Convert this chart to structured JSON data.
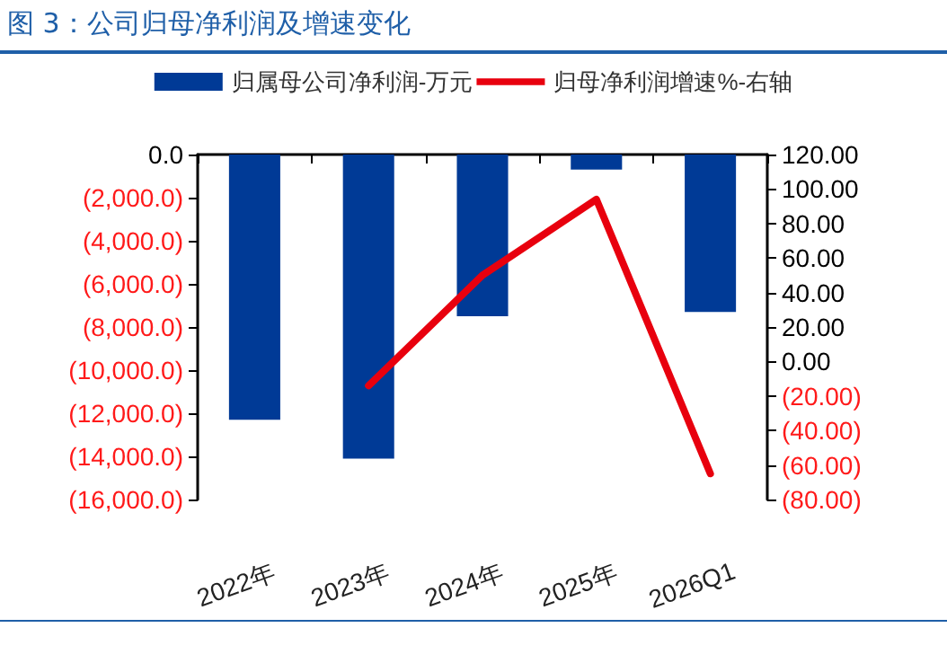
{
  "chart_data": {
    "type": "bar",
    "title": "图 3：公司归母净利润及增速变化",
    "categories": [
      "2022年",
      "2023年",
      "2024年",
      "2025年",
      "2026Q1"
    ],
    "series": [
      {
        "name": "归属母公司净利润-万元",
        "color": "#003a96",
        "values": [
          -12300,
          -14100,
          -7500,
          -700,
          -7300
        ]
      },
      {
        "name": "归母净利润增速%-右轴",
        "type": "line",
        "axis": "y2",
        "color": "#e8000e",
        "values": [
          null,
          -14,
          50,
          94,
          -65
        ]
      }
    ],
    "ylim": [
      -16000,
      0
    ],
    "yticks": [
      {
        "value": -16000,
        "label": "(16,000.0)"
      },
      {
        "value": -14000,
        "label": "(14,000.0)"
      },
      {
        "value": -12000,
        "label": "(12,000.0)"
      },
      {
        "value": -10000,
        "label": "(10,000.0)"
      },
      {
        "value": -8000,
        "label": "(8,000.0)"
      },
      {
        "value": -6000,
        "label": "(6,000.0)"
      },
      {
        "value": -4000,
        "label": "(4,000.0)"
      },
      {
        "value": -2000,
        "label": "(2,000.0)"
      },
      {
        "value": 0,
        "label": "0.0"
      }
    ],
    "y2lim": [
      -80,
      120
    ],
    "y2ticks": [
      {
        "value": -80,
        "label": "(80.00)"
      },
      {
        "value": -60,
        "label": "(60.00)"
      },
      {
        "value": -40,
        "label": "(40.00)"
      },
      {
        "value": -20,
        "label": "(20.00)"
      },
      {
        "value": 0,
        "label": "0.00"
      },
      {
        "value": 20,
        "label": "20.00"
      },
      {
        "value": 40,
        "label": "40.00"
      },
      {
        "value": 60,
        "label": "60.00"
      },
      {
        "value": 80,
        "label": "80.00"
      },
      {
        "value": 100,
        "label": "100.00"
      },
      {
        "value": 120,
        "label": "120.00"
      }
    ],
    "legend": "top",
    "grid": false,
    "marker": "none",
    "line_style": "solid"
  }
}
